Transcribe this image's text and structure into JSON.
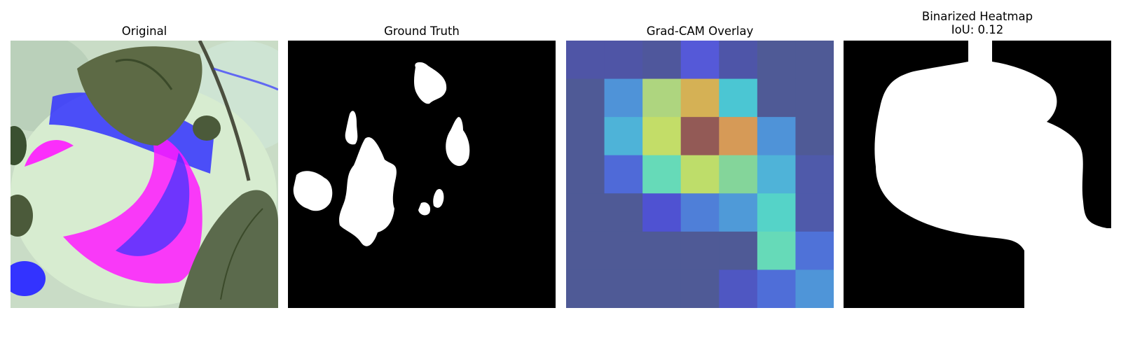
{
  "panels": [
    {
      "title": "Original"
    },
    {
      "title": "Ground Truth"
    },
    {
      "title": "Grad-CAM Overlay"
    },
    {
      "title": "Binarized Heatmap",
      "subtitle": "IoU: 0.12"
    }
  ],
  "gradcam_grid": [
    [
      "#4f55a6",
      "#4f55a6",
      "#4f579c",
      "#5559d8",
      "#4e55a8",
      "#4f5a96",
      "#4f5a96"
    ],
    [
      "#4f5a96",
      "#4f93d8",
      "#aed57f",
      "#d5b155",
      "#4bc6d3",
      "#4f5a96",
      "#4f5a96"
    ],
    [
      "#4f5a96",
      "#4eb3d8",
      "#c3dd68",
      "#935a56",
      "#d69a57",
      "#4f93d8",
      "#4f5a96"
    ],
    [
      "#4f5a96",
      "#4f6ad8",
      "#66dab8",
      "#bedd6a",
      "#84d59a",
      "#4fb3d8",
      "#4f5aaa"
    ],
    [
      "#4f5a96",
      "#4f5a96",
      "#4f52d2",
      "#4f7fd8",
      "#4f9ad8",
      "#55d3c8",
      "#4f5aaa"
    ],
    [
      "#4f5a96",
      "#4f5a96",
      "#4f5a96",
      "#4f5a96",
      "#4f5a96",
      "#66dab8",
      "#4f72d8"
    ],
    [
      "#4f5a96",
      "#4f5a96",
      "#4f5a96",
      "#4f5a96",
      "#4f57c2",
      "#4f6ed8",
      "#4f95d8"
    ]
  ],
  "colors": {
    "background": "#ffffff",
    "mask_fg": "#ffffff",
    "mask_bg": "#000000",
    "leaf_light": "#d7ecd0",
    "leaf_dark": "#5d6a45",
    "magenta": "#ff1aff",
    "blue": "#3333ff"
  }
}
